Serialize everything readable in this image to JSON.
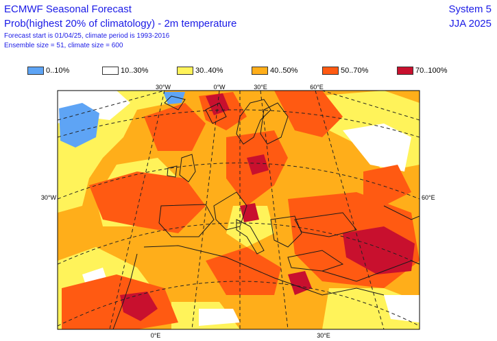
{
  "header": {
    "line1": "ECMWF Seasonal Forecast",
    "line2": "Prob(highest 20% of climatology) - 2m temperature",
    "line3": "Forecast start is 01/04/25, climate period is 1993-2016",
    "line4": "Ensemble size = 51, climate size = 600"
  },
  "system": {
    "line1": "System 5",
    "line2": "JJA 2025"
  },
  "legend": [
    {
      "label": "0..10%",
      "color": "#5ea4f5"
    },
    {
      "label": "10..30%",
      "color": "#ffffff"
    },
    {
      "label": "30..40%",
      "color": "#fff35a"
    },
    {
      "label": "40..50%",
      "color": "#ffae1a"
    },
    {
      "label": "50..70%",
      "color": "#ff5a12"
    },
    {
      "label": "70..100%",
      "color": "#c8102e"
    }
  ],
  "axis_labels": {
    "top": [
      "30°W",
      "0°W",
      "30°E",
      "60°E"
    ],
    "left": "30°W",
    "right": "60°E",
    "bottom": [
      "0°E",
      "30°E"
    ]
  }
}
